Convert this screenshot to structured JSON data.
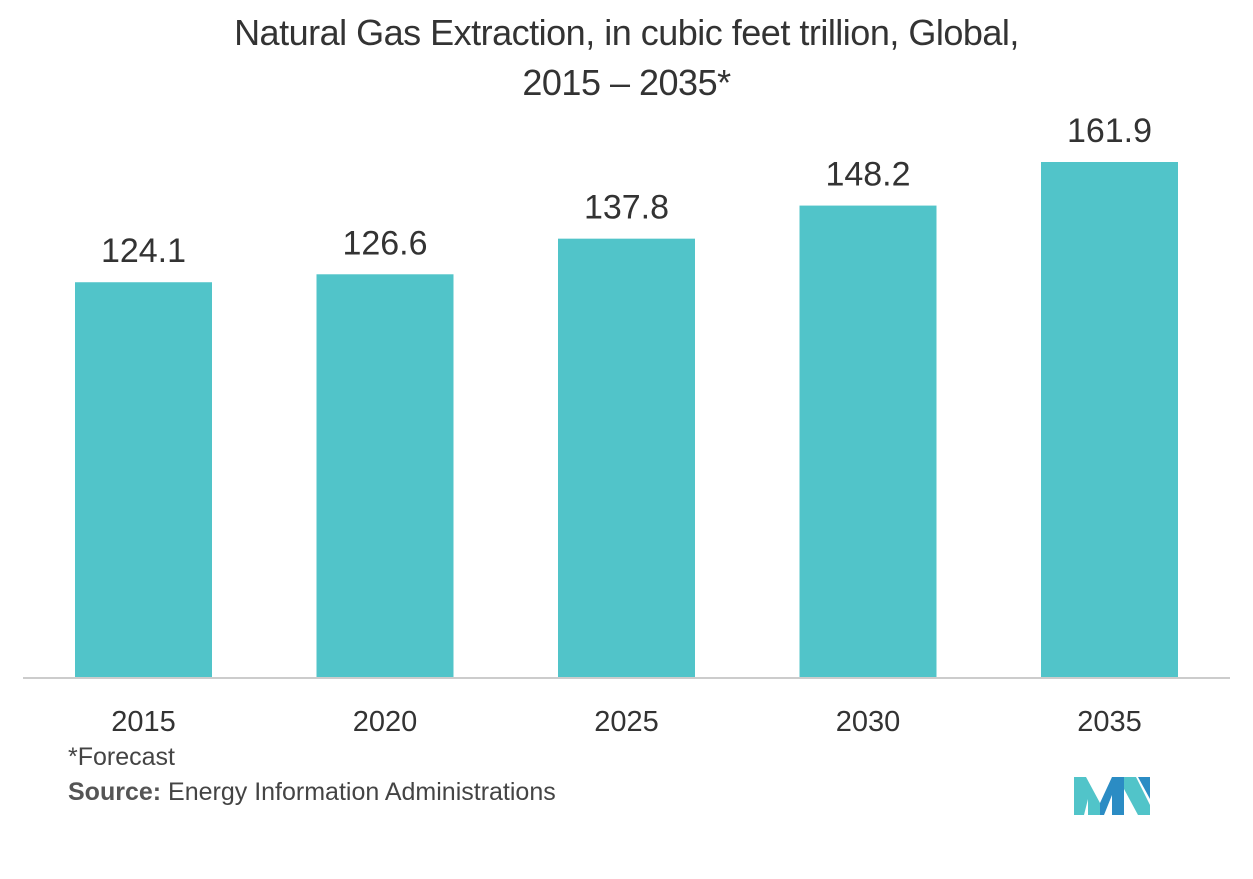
{
  "chart_data": {
    "type": "bar",
    "title_line1": "Natural Gas Extraction, in cubic feet trillion, Global,",
    "title_line2": "2015 – 2035*",
    "categories": [
      "2015",
      "2020",
      "2025",
      "2030",
      "2035"
    ],
    "values": [
      124.1,
      126.6,
      137.8,
      148.2,
      161.9
    ],
    "value_labels": [
      "124.1",
      "126.6",
      "137.8",
      "148.2",
      "161.9"
    ],
    "xlabel": "",
    "ylabel": "",
    "ylim": [
      0,
      170
    ],
    "grid": false,
    "bar_color": "#51C4C9",
    "axis_color": "#CCCCCC"
  },
  "footnote": "*Forecast",
  "source_label": "Source:",
  "source_text": "Energy Information Administrations",
  "logo_colors": [
    "#2B8CC4",
    "#51C4C9"
  ]
}
